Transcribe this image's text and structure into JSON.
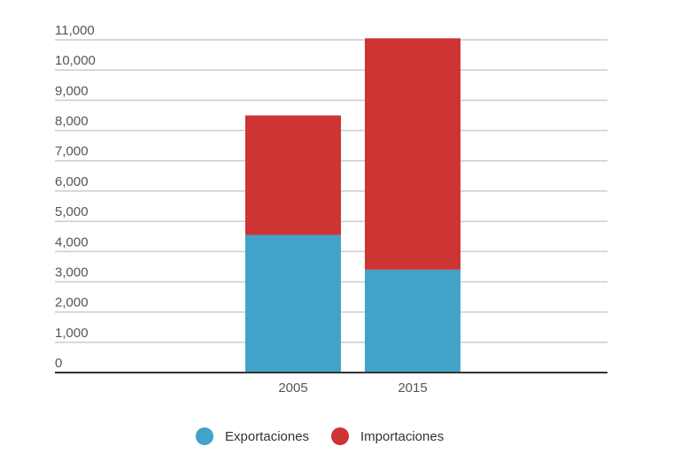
{
  "chart_data": {
    "type": "bar",
    "stacked": true,
    "categories": [
      "2005",
      "2015"
    ],
    "series": [
      {
        "name": "Exportaciones",
        "values": [
          4550,
          3400
        ],
        "color": "#41a3c8"
      },
      {
        "name": "Importaciones",
        "values": [
          3950,
          7650
        ],
        "color": "#cd3434"
      }
    ],
    "ylim": [
      0,
      11000
    ],
    "yticks": [
      0,
      1000,
      2000,
      3000,
      4000,
      5000,
      6000,
      7000,
      8000,
      9000,
      10000,
      11000
    ],
    "ytick_labels": [
      "0",
      "1,000",
      "2,000",
      "3,000",
      "4,000",
      "5,000",
      "6,000",
      "7,000",
      "8,000",
      "9,000",
      "10,000",
      "11,000"
    ],
    "grid": true,
    "legend": "bottom",
    "title": "",
    "xlabel": "",
    "ylabel": ""
  }
}
